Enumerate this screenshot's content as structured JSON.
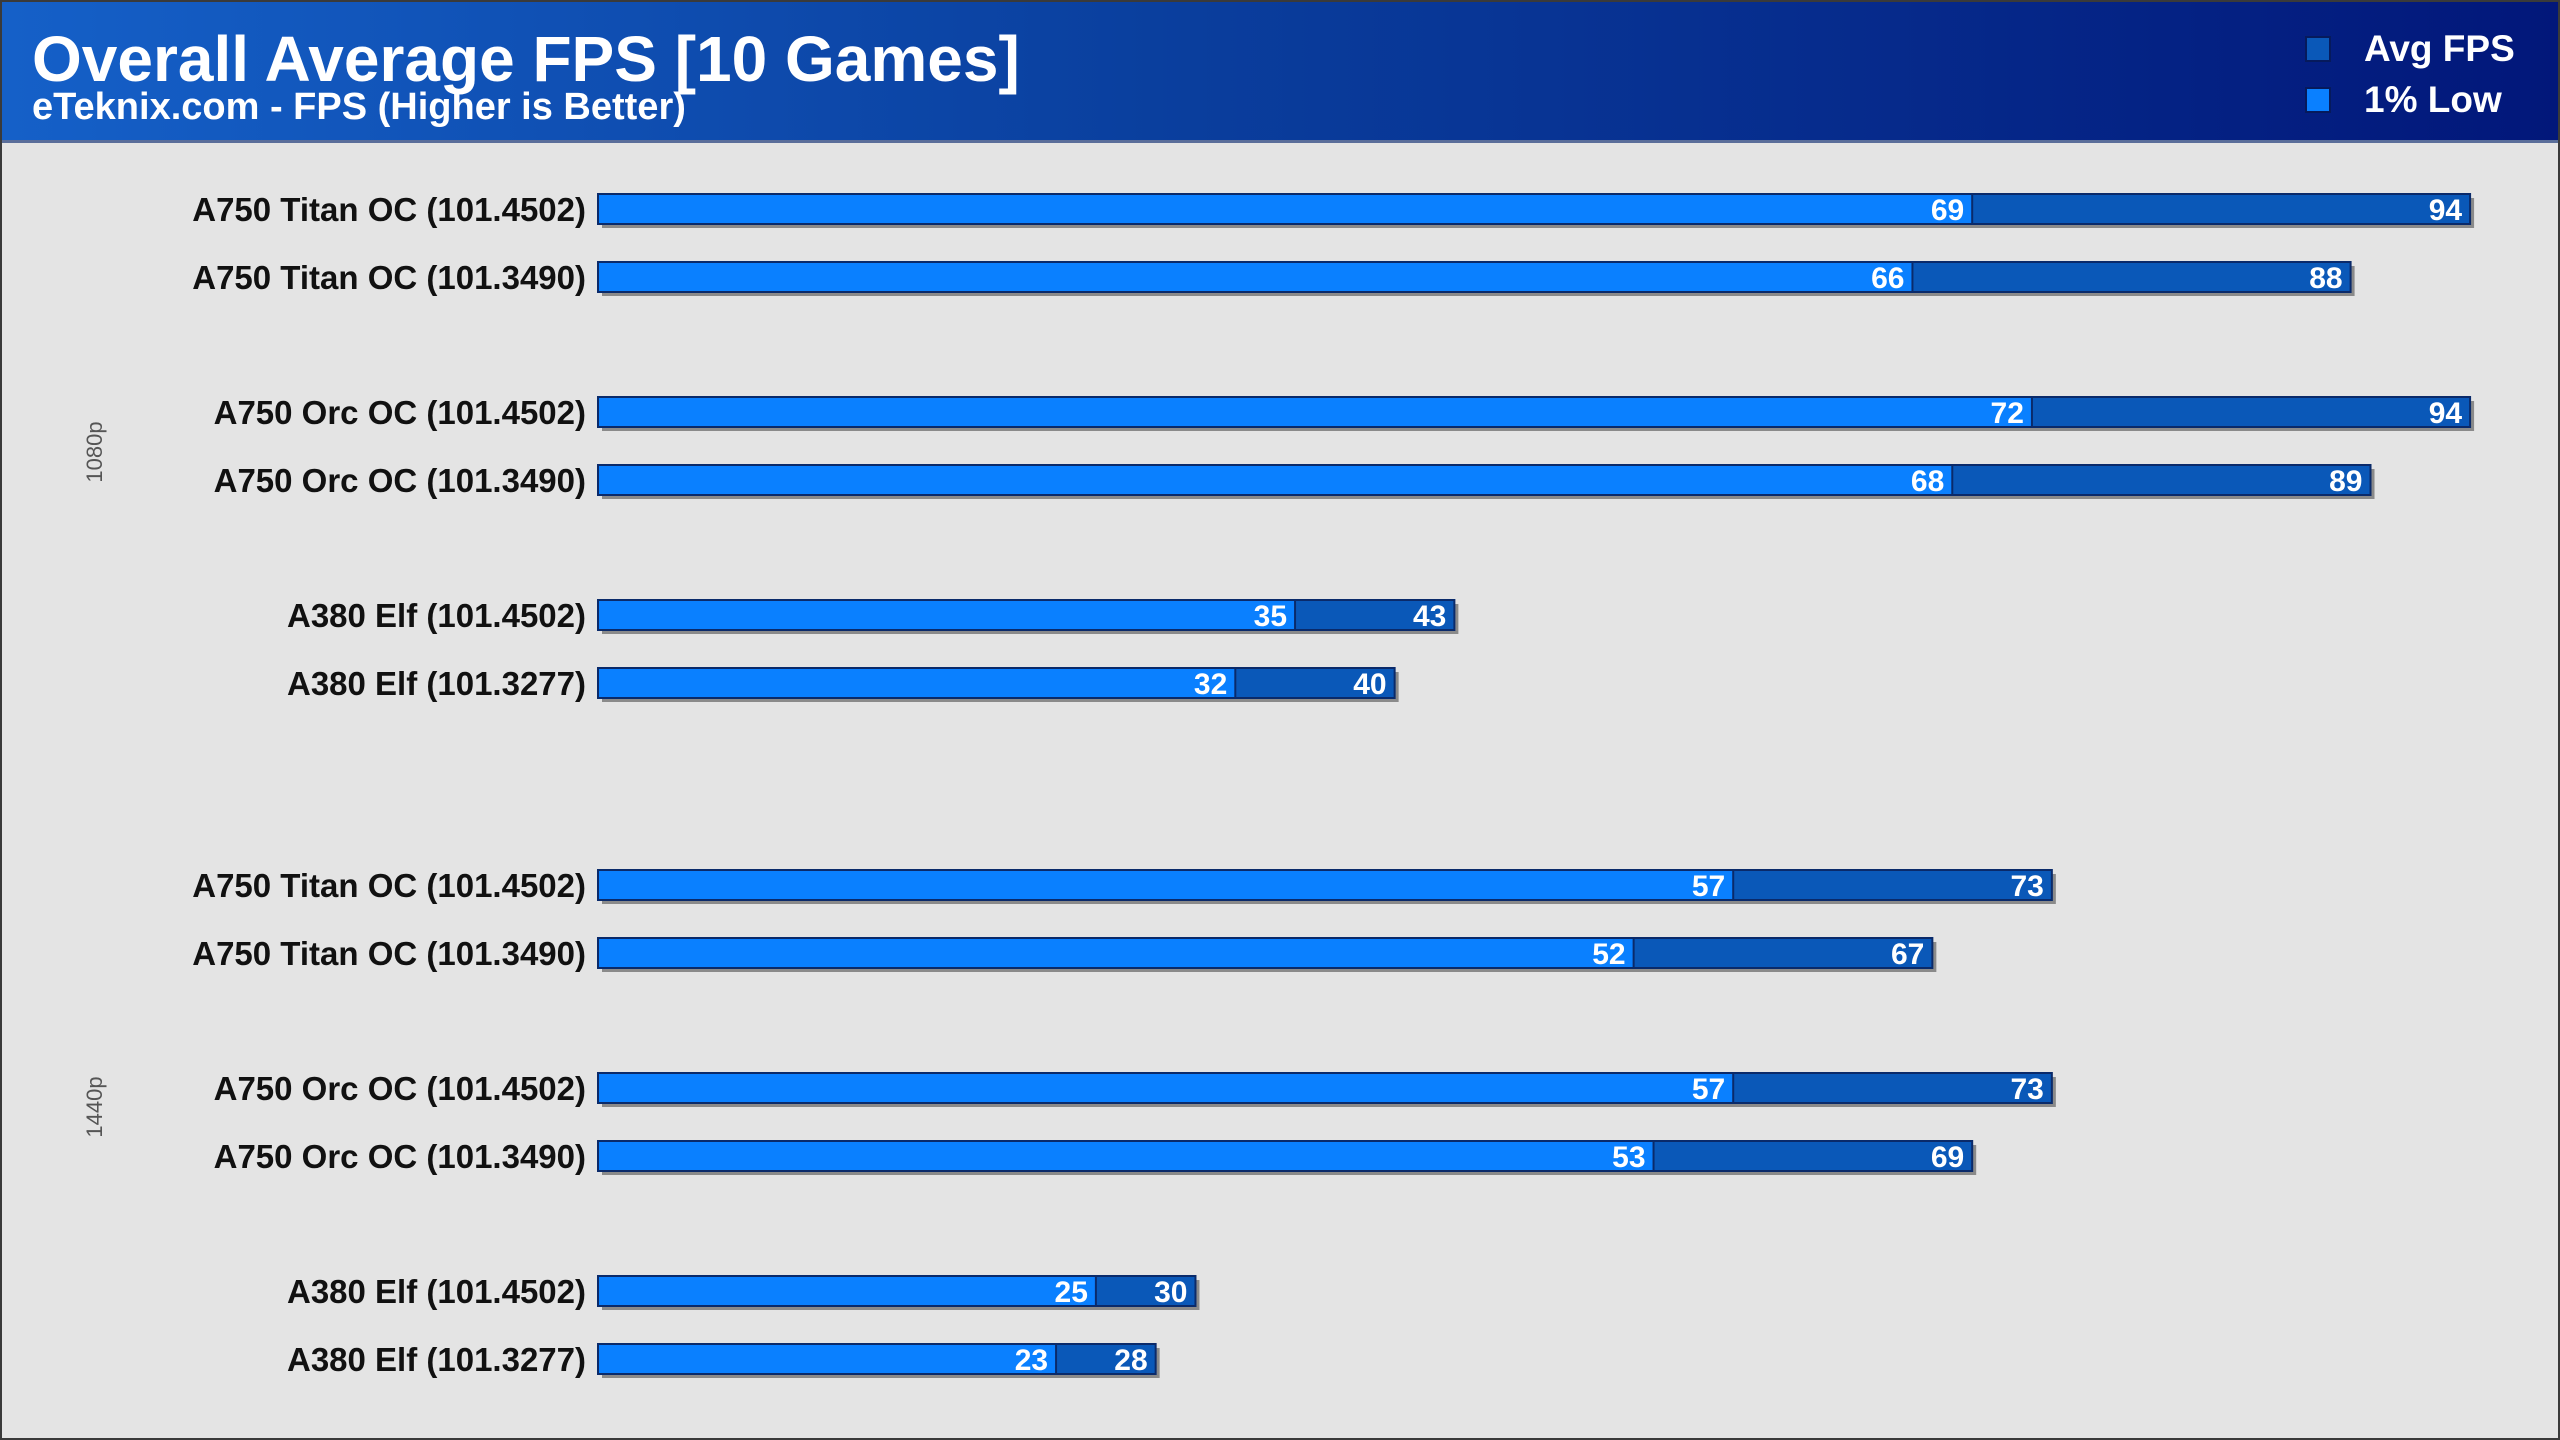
{
  "colors": {
    "avg": "#0a58b8",
    "low": "#0a80ff",
    "header_start": "#1560c8",
    "header_end": "#02177a",
    "background": "#e4e4e4"
  },
  "chart_data": {
    "type": "bar",
    "orientation": "horizontal",
    "title": "Overall Average FPS [10 Games]",
    "subtitle": "eTeknix.com - FPS (Higher is Better)",
    "legend": [
      "Avg FPS",
      "1% Low"
    ],
    "legend_position": "top-right",
    "xlim": [
      0,
      95
    ],
    "grid": false,
    "groups": [
      {
        "label": "1080p",
        "categories": [
          "A750 Titan OC (101.4502)",
          "A750 Titan OC (101.3490)",
          "A750 Orc OC (101.4502)",
          "A750 Orc OC (101.3490)",
          "A380 Elf (101.4502)",
          "A380 Elf (101.3277)"
        ],
        "avg_fps": [
          94,
          88,
          94,
          89,
          43,
          40
        ],
        "low_1pct": [
          69,
          66,
          72,
          68,
          35,
          32
        ]
      },
      {
        "label": "1440p",
        "categories": [
          "A750 Titan OC (101.4502)",
          "A750 Titan OC (101.3490)",
          "A750 Orc OC (101.4502)",
          "A750 Orc OC (101.3490)",
          "A380 Elf (101.4502)",
          "A380 Elf (101.3277)"
        ],
        "avg_fps": [
          73,
          67,
          73,
          69,
          30,
          28
        ],
        "low_1pct": [
          57,
          52,
          57,
          53,
          25,
          23
        ]
      }
    ]
  }
}
